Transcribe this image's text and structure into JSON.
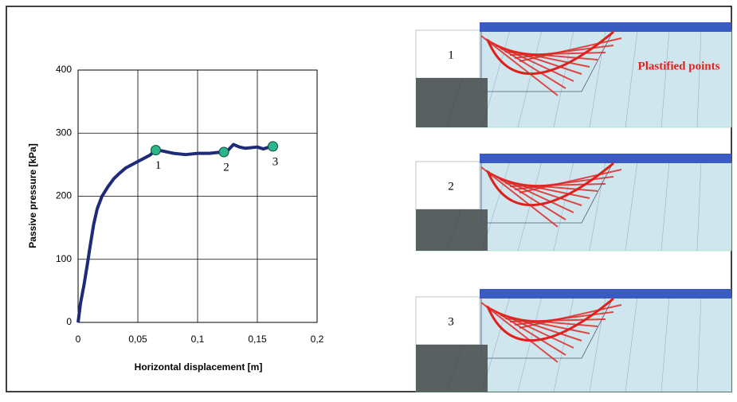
{
  "chart_data": {
    "type": "line",
    "x_label": "Horizontal displacement [m]",
    "y_label": "Passive pressure [kPa]",
    "x": [
      0,
      0.002,
      0.005,
      0.008,
      0.01,
      0.013,
      0.016,
      0.02,
      0.025,
      0.03,
      0.035,
      0.04,
      0.045,
      0.05,
      0.055,
      0.06,
      0.065,
      0.07,
      0.075,
      0.08,
      0.09,
      0.1,
      0.11,
      0.12,
      0.125,
      0.13,
      0.135,
      0.14,
      0.15,
      0.155,
      0.16,
      0.163
    ],
    "series": [
      {
        "color": "#1f2a78",
        "values": [
          0,
          30,
          60,
          95,
          120,
          155,
          180,
          200,
          215,
          228,
          237,
          245,
          250,
          255,
          260,
          265,
          273,
          272,
          270,
          268,
          266,
          268,
          268,
          270,
          272,
          282,
          278,
          276,
          278,
          275,
          278,
          280
        ]
      }
    ],
    "annotations": [
      {
        "text": "1",
        "x": 0.065,
        "y": 273
      },
      {
        "text": "2",
        "x": 0.122,
        "y": 270
      },
      {
        "text": "3",
        "x": 0.163,
        "y": 279
      }
    ],
    "marker_color": "#2bb58a",
    "xlim": [
      0,
      0.2
    ],
    "xticks": [
      0,
      {
        "value": 0.05,
        "label": "0,05"
      },
      {
        "value": 0.1,
        "label": "0,1"
      },
      {
        "value": 0.15,
        "label": "0,15"
      },
      {
        "value": 0.2,
        "label": "0,2"
      }
    ],
    "ylim": [
      0,
      400
    ],
    "yticks": [
      0,
      100,
      200,
      300,
      400
    ],
    "grid": true
  },
  "panels": [
    {
      "label": "1"
    },
    {
      "label": "2"
    },
    {
      "label": "3"
    }
  ],
  "panel_note": "Plastified points"
}
